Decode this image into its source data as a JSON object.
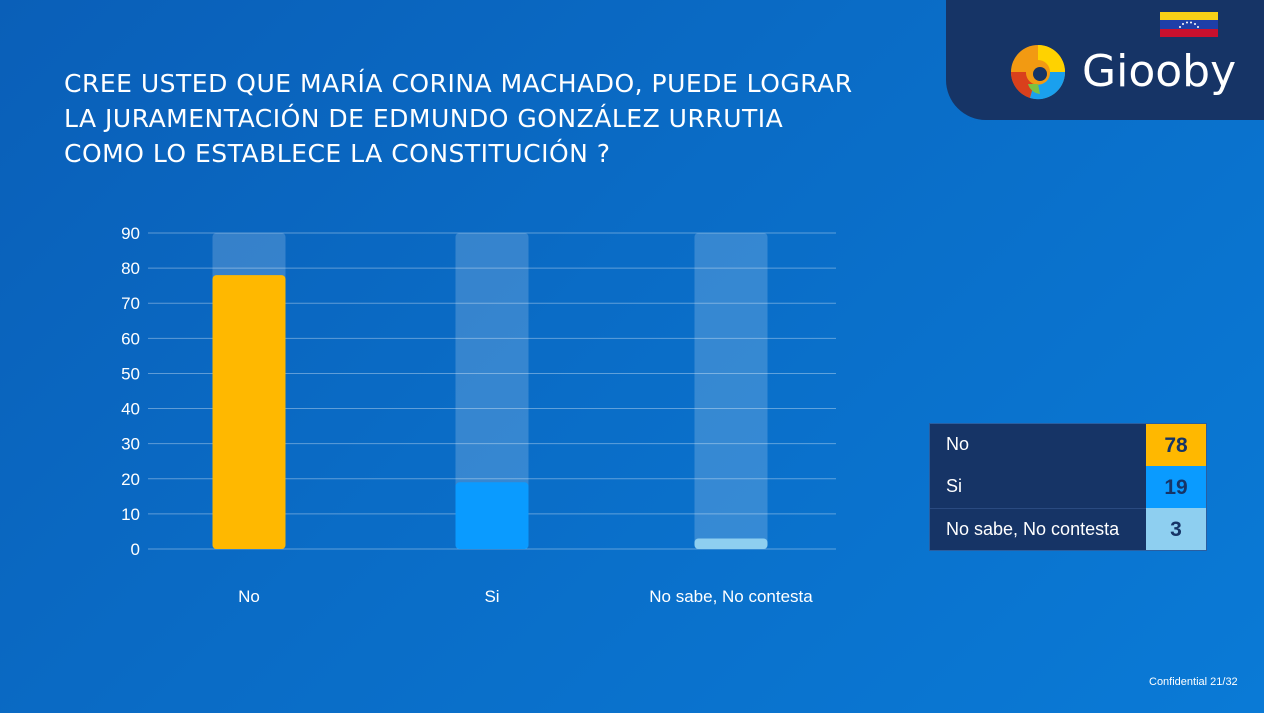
{
  "title_lines": [
    "CREE USTED QUE MARÍA CORINA MACHADO, PUEDE LOGRAR",
    "LA JURAMENTACIÓN DE EDMUNDO GONZÁLEZ URRUTIA",
    "COMO LO ESTABLECE LA CONSTITUCIÓN ?"
  ],
  "brand": {
    "name": "Giooby"
  },
  "chart_data": {
    "type": "bar",
    "title": "CREE USTED QUE MARÍA CORINA MACHADO, PUEDE LOGRAR LA JURAMENTACIÓN DE EDMUNDO GONZÁLEZ URRUTIA COMO LO ESTABLECE LA CONSTITUCIÓN ?",
    "categories": [
      "No",
      "Si",
      "No sabe, No contesta"
    ],
    "values": [
      78,
      19,
      3
    ],
    "colors": [
      "#ffb800",
      "#0a9bff",
      "#8ecff0"
    ],
    "ylim": [
      0,
      90
    ],
    "yticks": [
      0,
      10,
      20,
      30,
      40,
      50,
      60,
      70,
      80,
      90
    ],
    "grid": true,
    "xlabel": "",
    "ylabel": ""
  },
  "table": [
    {
      "label": "No",
      "value": "78",
      "color": "#ffb800"
    },
    {
      "label": "Si",
      "value": "19",
      "color": "#0a9bff"
    },
    {
      "label": "No sabe, No contesta",
      "value": "3",
      "color": "#8ecff0"
    }
  ],
  "footer": "Confidential 21/32"
}
